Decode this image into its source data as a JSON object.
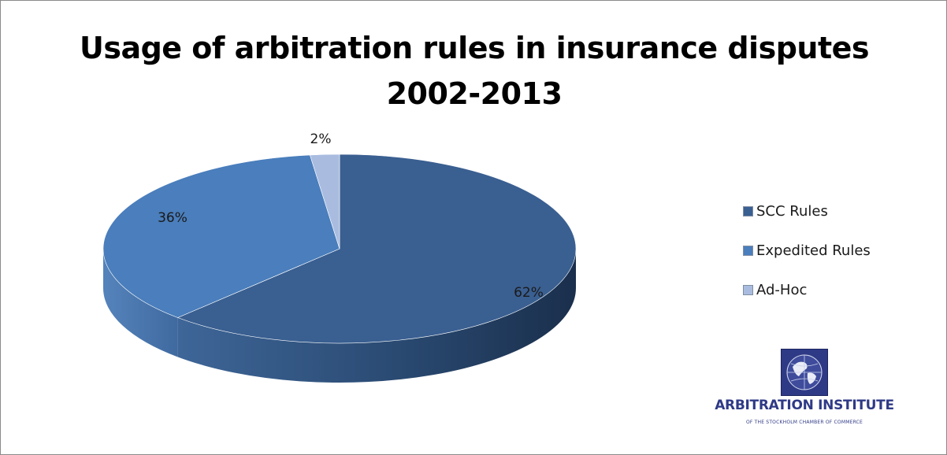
{
  "chart_data": {
    "type": "pie",
    "title": "Usage of arbitration rules in insurance disputes",
    "subtitle": "2002-2013",
    "categories": [
      "SCC Rules",
      "Expedited Rules",
      "Ad-Hoc"
    ],
    "values": [
      62,
      36,
      2
    ],
    "labels": [
      "62%",
      "36%",
      "2%"
    ],
    "colors": [
      "#3a5f91",
      "#4a7ebc",
      "#a9bce0"
    ],
    "legend_position": "right"
  },
  "logo": {
    "name": "ARBITRATION INSTITUTE",
    "subtitle": "OF THE STOCKHOLM CHAMBER OF COMMERCE"
  }
}
